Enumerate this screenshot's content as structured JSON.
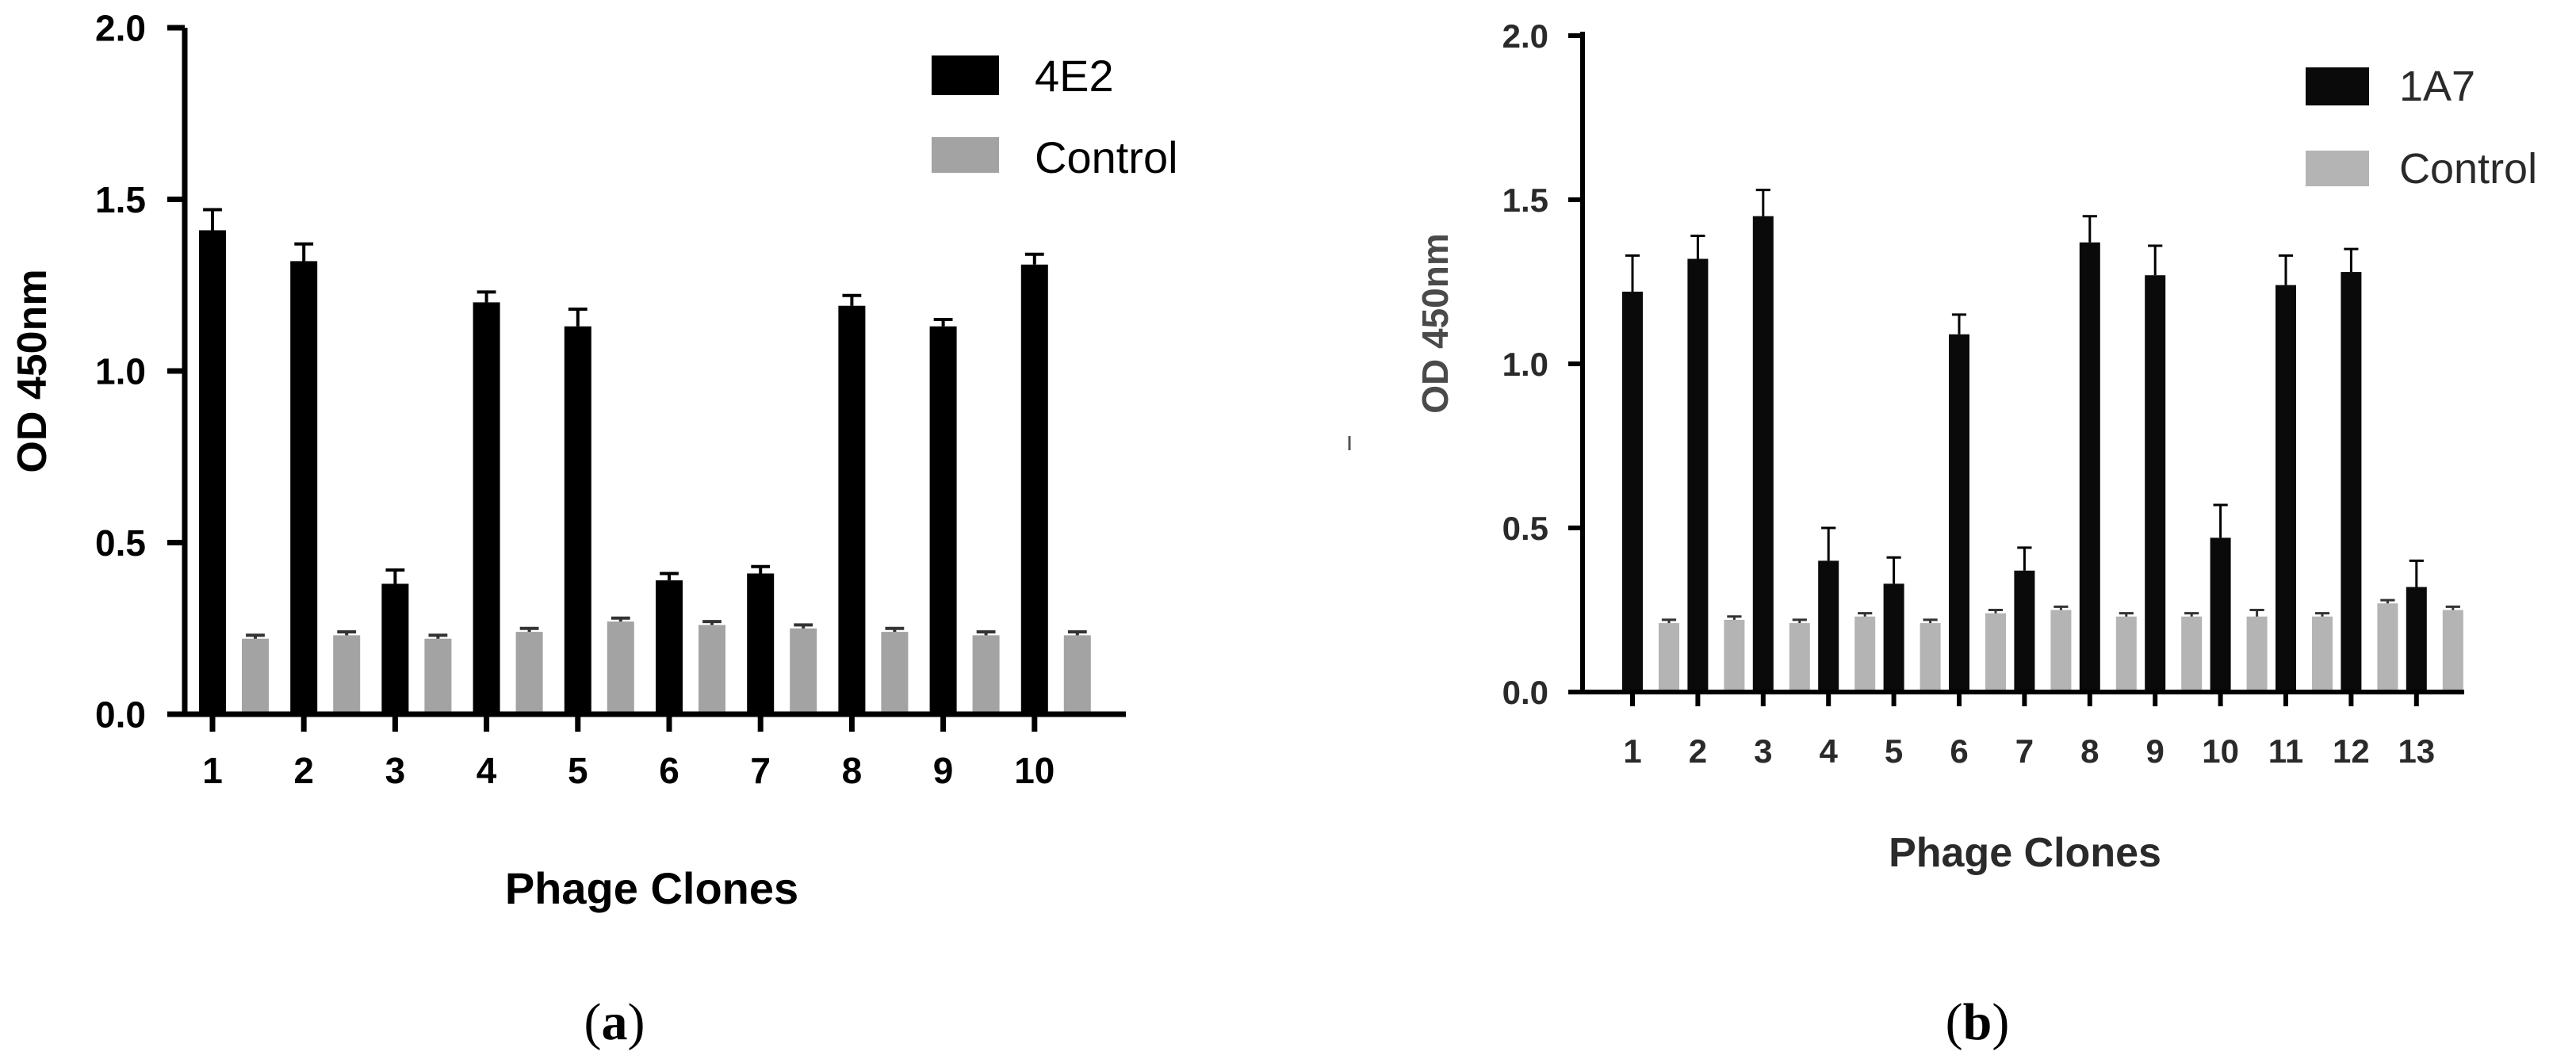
{
  "chart_data": [
    {
      "type": "bar",
      "panel_caption": "(a)",
      "caption_letter": "a",
      "xlabel": "Phage Clones",
      "ylabel": "OD 450nm",
      "ylim": [
        0,
        2.0
      ],
      "yticks": [
        "0.0",
        "0.5",
        "1.0",
        "1.5",
        "2.0"
      ],
      "ytick_values": [
        0,
        0.5,
        1.0,
        1.5,
        2.0
      ],
      "categories": [
        "1",
        "2",
        "3",
        "4",
        "5",
        "6",
        "7",
        "8",
        "9",
        "10"
      ],
      "legend_position": "top-right",
      "series": [
        {
          "name": "4E2",
          "color": "#000000",
          "values": [
            1.41,
            1.32,
            0.38,
            1.2,
            1.13,
            0.39,
            0.41,
            1.19,
            1.13,
            1.31
          ],
          "errors": [
            0.06,
            0.05,
            0.04,
            0.03,
            0.05,
            0.02,
            0.02,
            0.03,
            0.02,
            0.03
          ]
        },
        {
          "name": "Control",
          "color": "#a3a3a3",
          "values": [
            0.22,
            0.23,
            0.22,
            0.24,
            0.27,
            0.26,
            0.25,
            0.24,
            0.23,
            0.23
          ],
          "errors": [
            0.01,
            0.01,
            0.01,
            0.01,
            0.01,
            0.01,
            0.01,
            0.01,
            0.01,
            0.01
          ]
        }
      ]
    },
    {
      "type": "bar",
      "panel_caption": "(b)",
      "caption_letter": "b",
      "xlabel": "Phage Clones",
      "ylabel": "OD 450nm",
      "ylim": [
        0,
        2.0
      ],
      "yticks": [
        "0.0",
        "0.5",
        "1.0",
        "1.5",
        "2.0"
      ],
      "ytick_values": [
        0,
        0.5,
        1.0,
        1.5,
        2.0
      ],
      "categories": [
        "1",
        "2",
        "3",
        "4",
        "5",
        "6",
        "7",
        "8",
        "9",
        "10",
        "11",
        "12",
        "13"
      ],
      "legend_position": "top-right",
      "series": [
        {
          "name": "1A7",
          "color": "#0a0a0a",
          "values": [
            1.22,
            1.32,
            1.45,
            0.4,
            0.33,
            1.09,
            0.37,
            1.37,
            1.27,
            0.47,
            1.24,
            1.28,
            0.32
          ],
          "errors": [
            0.11,
            0.07,
            0.08,
            0.1,
            0.08,
            0.06,
            0.07,
            0.08,
            0.09,
            0.1,
            0.09,
            0.07,
            0.08
          ]
        },
        {
          "name": "Control",
          "color": "#b4b4b4",
          "values": [
            0.21,
            0.22,
            0.21,
            0.23,
            0.21,
            0.24,
            0.25,
            0.23,
            0.23,
            0.23,
            0.23,
            0.27,
            0.25
          ],
          "errors": [
            0.01,
            0.01,
            0.01,
            0.01,
            0.01,
            0.01,
            0.01,
            0.01,
            0.01,
            0.02,
            0.01,
            0.01,
            0.01
          ]
        }
      ]
    }
  ]
}
